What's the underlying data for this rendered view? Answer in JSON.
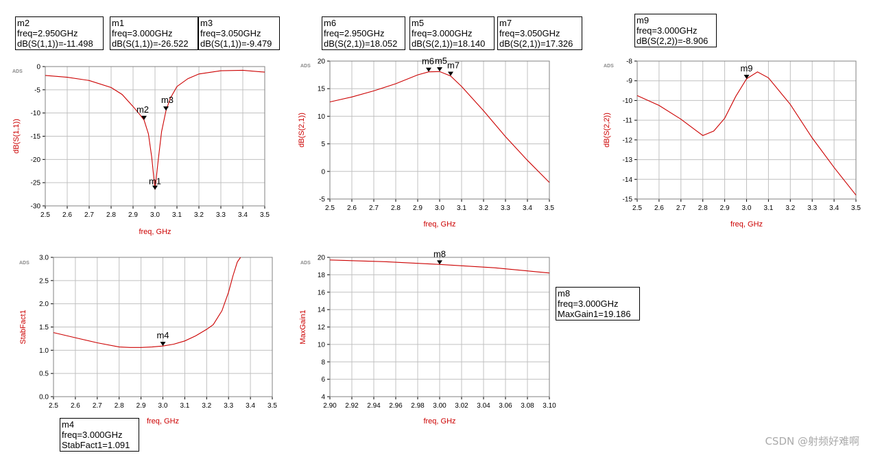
{
  "colors": {
    "trace": "#cc0000",
    "axis_label": "#cc0000",
    "grid": "#c0c0c0",
    "frame": "#808080"
  },
  "watermark": "CSDN @射频好难啊",
  "chart_data": [
    {
      "id": "s11",
      "type": "line",
      "tag": "ADS",
      "xlabel": "freq, GHz",
      "ylabel": "dB(S(1,1))",
      "xlim": [
        2.5,
        3.5
      ],
      "ylim": [
        -30,
        0
      ],
      "xticks": [
        2.5,
        2.6,
        2.7,
        2.8,
        2.9,
        3.0,
        3.1,
        3.2,
        3.3,
        3.4,
        3.5
      ],
      "xtick_labels": [
        "2.5",
        "2.6",
        "2.7",
        "2.8",
        "2.9",
        "3.0",
        "3.1",
        "3.2",
        "3.3",
        "3.4",
        "3.5"
      ],
      "yticks": [
        0,
        -5,
        -10,
        -15,
        -20,
        -25,
        -30
      ],
      "ytick_labels": [
        "0",
        "-5",
        "-10",
        "-15",
        "-20",
        "-25",
        "-30"
      ],
      "series": [
        {
          "x": [
            2.5,
            2.6,
            2.7,
            2.8,
            2.85,
            2.9,
            2.93,
            2.95,
            2.97,
            2.985,
            3.0,
            3.015,
            3.03,
            3.05,
            3.07,
            3.1,
            3.15,
            3.2,
            3.3,
            3.4,
            3.5
          ],
          "y": [
            -1.9,
            -2.3,
            -3.0,
            -4.5,
            -6.0,
            -8.6,
            -10.3,
            -11.5,
            -14.5,
            -19.5,
            -26.5,
            -20.0,
            -14.0,
            -9.5,
            -6.8,
            -4.3,
            -2.6,
            -1.6,
            -0.9,
            -0.8,
            -1.2
          ]
        }
      ],
      "markers": [
        {
          "name": "m1",
          "x": 3.0,
          "y": -26.522,
          "lines": [
            "m1",
            "freq=3.000GHz",
            "dB(S(1,1))=-26.522"
          ]
        },
        {
          "name": "m2",
          "x": 2.95,
          "y": -11.498,
          "lines": [
            "m2",
            "freq=2.950GHz",
            "dB(S(1,1))=-11.498"
          ]
        },
        {
          "name": "m3",
          "x": 3.05,
          "y": -9.479,
          "lines": [
            "m3",
            "freq=3.050GHz",
            "dB(S(1,1))=-9.479"
          ]
        }
      ]
    },
    {
      "id": "s21",
      "type": "line",
      "tag": "ADS",
      "xlabel": "freq, GHz",
      "ylabel": "dB(S(2,1))",
      "xlim": [
        2.5,
        3.5
      ],
      "ylim": [
        -5,
        20
      ],
      "xticks": [
        2.5,
        2.6,
        2.7,
        2.8,
        2.9,
        3.0,
        3.1,
        3.2,
        3.3,
        3.4,
        3.5
      ],
      "xtick_labels": [
        "2.5",
        "2.6",
        "2.7",
        "2.8",
        "2.9",
        "3.0",
        "3.1",
        "3.2",
        "3.3",
        "3.4",
        "3.5"
      ],
      "yticks": [
        20,
        15,
        10,
        5,
        0,
        -5
      ],
      "ytick_labels": [
        "20",
        "15",
        "10",
        "5",
        "0",
        "-5"
      ],
      "series": [
        {
          "x": [
            2.5,
            2.6,
            2.7,
            2.8,
            2.9,
            2.95,
            3.0,
            3.05,
            3.1,
            3.2,
            3.3,
            3.4,
            3.5
          ],
          "y": [
            12.6,
            13.5,
            14.6,
            15.9,
            17.5,
            18.05,
            18.1,
            17.3,
            15.4,
            11.0,
            6.3,
            2.0,
            -2.0
          ]
        }
      ],
      "markers": [
        {
          "name": "m6",
          "x": 2.95,
          "y": 18.052,
          "lines": [
            "m6",
            "freq=2.950GHz",
            "dB(S(2,1))=18.052"
          ]
        },
        {
          "name": "m5",
          "x": 3.0,
          "y": 18.14,
          "lines": [
            "m5",
            "freq=3.000GHz",
            "dB(S(2,1))=18.140"
          ]
        },
        {
          "name": "m7",
          "x": 3.05,
          "y": 17.326,
          "lines": [
            "m7",
            "freq=3.050GHz",
            "dB(S(2,1))=17.326"
          ]
        }
      ]
    },
    {
      "id": "s22",
      "type": "line",
      "tag": "ADS",
      "xlabel": "freq, GHz",
      "ylabel": "dB(S(2,2))",
      "xlim": [
        2.5,
        3.5
      ],
      "ylim": [
        -15,
        -8
      ],
      "xticks": [
        2.5,
        2.6,
        2.7,
        2.8,
        2.9,
        3.0,
        3.1,
        3.2,
        3.3,
        3.4,
        3.5
      ],
      "xtick_labels": [
        "2.5",
        "2.6",
        "2.7",
        "2.8",
        "2.9",
        "3.0",
        "3.1",
        "3.2",
        "3.3",
        "3.4",
        "3.5"
      ],
      "yticks": [
        -8,
        -9,
        -10,
        -11,
        -12,
        -13,
        -14,
        -15
      ],
      "ytick_labels": [
        "-8",
        "-9",
        "-10",
        "-11",
        "-12",
        "-13",
        "-14",
        "-15"
      ],
      "series": [
        {
          "x": [
            2.5,
            2.6,
            2.7,
            2.8,
            2.85,
            2.9,
            2.95,
            3.0,
            3.05,
            3.1,
            3.2,
            3.3,
            3.4,
            3.5
          ],
          "y": [
            -9.75,
            -10.25,
            -10.95,
            -11.78,
            -11.55,
            -10.9,
            -9.8,
            -8.9,
            -8.55,
            -8.85,
            -10.2,
            -11.9,
            -13.4,
            -14.8
          ]
        }
      ],
      "markers": [
        {
          "name": "m9",
          "x": 3.0,
          "y": -8.906,
          "lines": [
            "m9",
            "freq=3.000GHz",
            "dB(S(2,2))=-8.906"
          ]
        }
      ]
    },
    {
      "id": "stab",
      "type": "line",
      "tag": "ADS",
      "xlabel": "freq, GHz",
      "ylabel": "StabFact1",
      "xlim": [
        2.5,
        3.5
      ],
      "ylim": [
        0.0,
        3.0
      ],
      "xticks": [
        2.5,
        2.6,
        2.7,
        2.8,
        2.9,
        3.0,
        3.1,
        3.2,
        3.3,
        3.4,
        3.5
      ],
      "xtick_labels": [
        "2.5",
        "2.6",
        "2.7",
        "2.8",
        "2.9",
        "3.0",
        "3.1",
        "3.2",
        "3.3",
        "3.4",
        "3.5"
      ],
      "yticks": [
        3.0,
        2.5,
        2.0,
        1.5,
        1.0,
        0.5,
        0.0
      ],
      "ytick_labels": [
        "3.0",
        "2.5",
        "2.0",
        "1.5",
        "1.0",
        "0.5",
        "0.0"
      ],
      "series": [
        {
          "x": [
            2.5,
            2.6,
            2.7,
            2.8,
            2.85,
            2.9,
            2.95,
            3.0,
            3.05,
            3.1,
            3.15,
            3.2,
            3.23,
            3.27,
            3.3,
            3.32,
            3.34,
            3.355
          ],
          "y": [
            1.38,
            1.27,
            1.16,
            1.07,
            1.06,
            1.06,
            1.07,
            1.09,
            1.13,
            1.2,
            1.31,
            1.45,
            1.55,
            1.85,
            2.25,
            2.6,
            2.9,
            3.0
          ]
        }
      ],
      "markers": [
        {
          "name": "m4",
          "x": 3.0,
          "y": 1.091,
          "lines": [
            "m4",
            "freq=3.000GHz",
            "StabFact1=1.091"
          ]
        }
      ]
    },
    {
      "id": "maxgain",
      "type": "line",
      "tag": "ADS",
      "xlabel": "freq, GHz",
      "ylabel": "MaxGain1",
      "xlim": [
        2.9,
        3.1
      ],
      "ylim": [
        4,
        20
      ],
      "xticks": [
        2.9,
        2.92,
        2.94,
        2.96,
        2.98,
        3.0,
        3.02,
        3.04,
        3.06,
        3.08,
        3.1
      ],
      "xtick_labels": [
        "2.90",
        "2.92",
        "2.94",
        "2.96",
        "2.98",
        "3.00",
        "3.02",
        "3.04",
        "3.06",
        "3.08",
        "3.10"
      ],
      "yticks": [
        20,
        18,
        16,
        14,
        12,
        10,
        8,
        6,
        4
      ],
      "ytick_labels": [
        "20",
        "18",
        "16",
        "14",
        "12",
        "10",
        "8",
        "6",
        "4"
      ],
      "series": [
        {
          "x": [
            2.9,
            2.95,
            3.0,
            3.05,
            3.1
          ],
          "y": [
            19.7,
            19.5,
            19.186,
            18.8,
            18.2
          ]
        }
      ],
      "markers": [
        {
          "name": "m8",
          "x": 3.0,
          "y": 19.186,
          "lines": [
            "m8",
            "freq=3.000GHz",
            "MaxGain1=19.186"
          ]
        }
      ]
    }
  ]
}
